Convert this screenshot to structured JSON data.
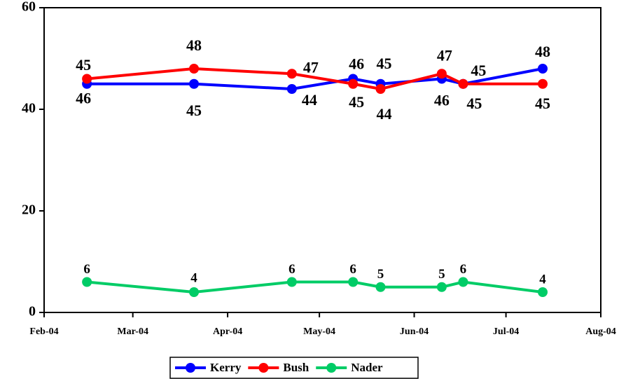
{
  "chart_data": {
    "type": "line",
    "x": [
      "2004-02-15",
      "2004-03-21",
      "2004-04-22",
      "2004-05-12",
      "2004-05-21",
      "2004-06-10",
      "2004-06-17",
      "2004-07-13"
    ],
    "series": [
      {
        "name": "Kerry",
        "color": "#0000ff",
        "values": [
          45,
          45,
          44,
          46,
          45,
          46,
          45,
          48
        ]
      },
      {
        "name": "Bush",
        "color": "#ff0000",
        "values": [
          46,
          48,
          47,
          45,
          44,
          47,
          45,
          45
        ]
      },
      {
        "name": "Nader",
        "color": "#00cc66",
        "values": [
          6,
          4,
          6,
          6,
          5,
          5,
          6,
          4
        ]
      }
    ],
    "xlim": [
      "2004-02-01",
      "2004-08-01"
    ],
    "xticks": [
      {
        "value": "2004-02-01",
        "label": "Feb-04"
      },
      {
        "value": "2004-03-01",
        "label": "Mar-04"
      },
      {
        "value": "2004-04-01",
        "label": "Apr-04"
      },
      {
        "value": "2004-05-01",
        "label": "May-04"
      },
      {
        "value": "2004-06-01",
        "label": "Jun-04"
      },
      {
        "value": "2004-07-01",
        "label": "Jul-04"
      },
      {
        "value": "2004-08-01",
        "label": "Aug-04"
      }
    ],
    "ylim": [
      0,
      60
    ],
    "yticks": [
      0,
      20,
      40,
      60
    ],
    "grid": false,
    "legend": "bottom"
  }
}
